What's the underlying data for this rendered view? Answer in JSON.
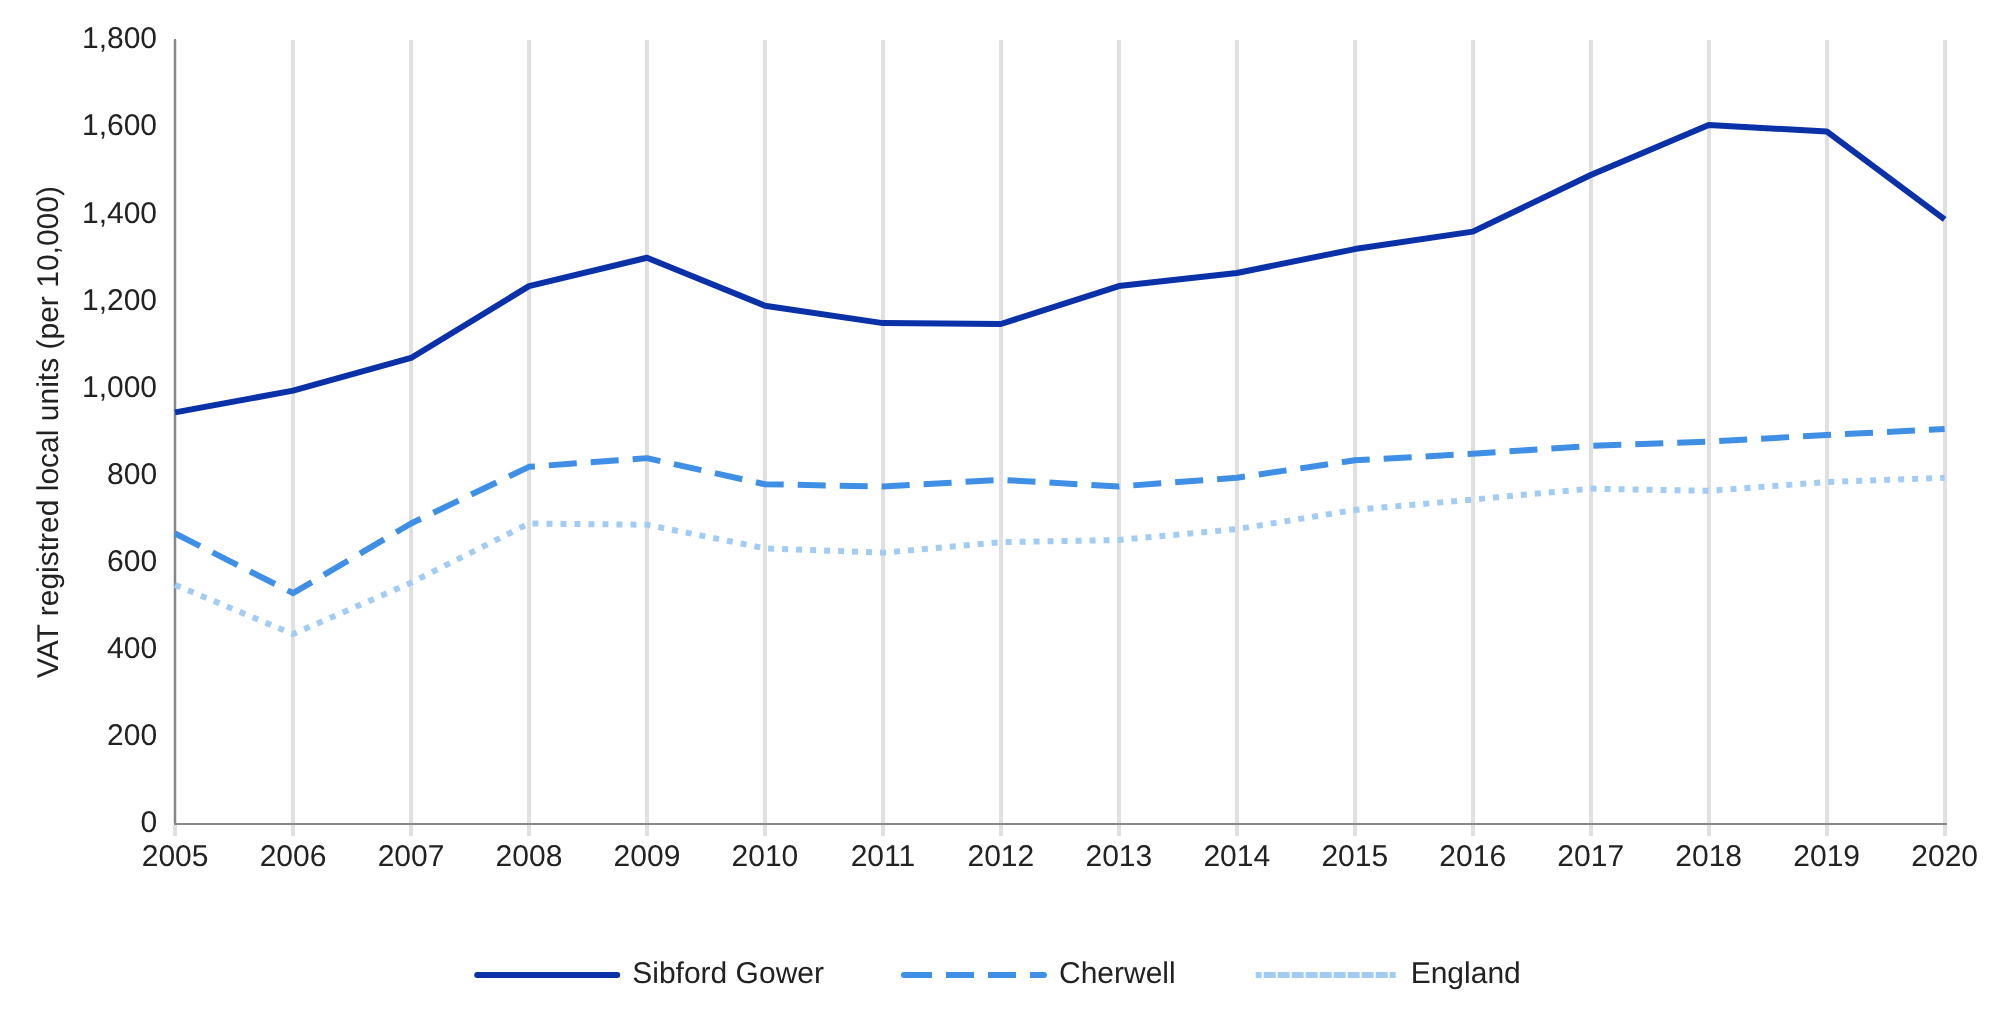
{
  "chart_data": {
    "type": "line",
    "ylabel": "VAT registred local units (per 10,000)",
    "categories": [
      "2005",
      "2006",
      "2007",
      "2008",
      "2009",
      "2010",
      "2011",
      "2012",
      "2013",
      "2014",
      "2015",
      "2016",
      "2017",
      "2018",
      "2019",
      "2020"
    ],
    "series": [
      {
        "name": "Sibford Gower",
        "color": "#0a31a8",
        "line_style": "solid",
        "values": [
          945,
          995,
          1070,
          1235,
          1300,
          1190,
          1150,
          1148,
          1235,
          1265,
          1320,
          1360,
          1490,
          1605,
          1590,
          1388
        ]
      },
      {
        "name": "Cherwell",
        "color": "#3f8fe6",
        "line_style": "dashed",
        "values": [
          667,
          530,
          690,
          820,
          840,
          780,
          775,
          790,
          775,
          795,
          835,
          850,
          868,
          878,
          893,
          907
        ]
      },
      {
        "name": "England",
        "color": "#a3ccf5",
        "line_style": "dotted",
        "values": [
          549,
          436,
          554,
          690,
          687,
          633,
          623,
          647,
          652,
          677,
          721,
          745,
          770,
          765,
          785,
          795
        ]
      }
    ],
    "ylim": [
      0,
      1800
    ],
    "yticks": [
      0,
      200,
      400,
      600,
      800,
      {
        "value": 1000,
        "label": "1,000"
      },
      {
        "value": 1200,
        "label": "1,200"
      },
      {
        "value": 1400,
        "label": "1,400"
      },
      {
        "value": 1600,
        "label": "1,600"
      },
      {
        "value": 1800,
        "label": "1,800"
      }
    ],
    "grid": "x",
    "legend": "bottom",
    "marker": "none"
  }
}
